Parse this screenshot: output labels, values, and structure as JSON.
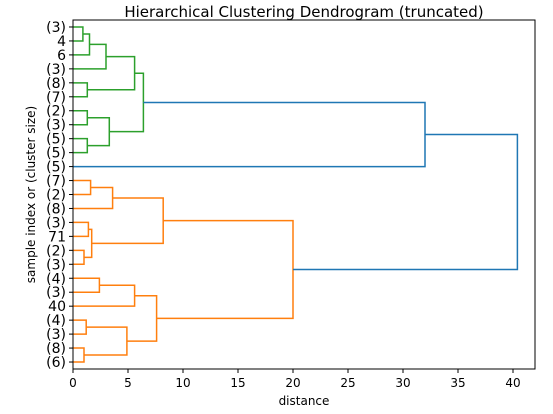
{
  "chart_data": {
    "type": "dendrogram",
    "title": "Hierarchical Clustering Dendrogram (truncated)",
    "xlabel": "distance",
    "ylabel": "sample index or (cluster size)",
    "xlim": [
      0,
      42
    ],
    "xticks": [
      "0",
      "5",
      "10",
      "15",
      "20",
      "25",
      "30",
      "35",
      "40"
    ],
    "xtick_values": [
      0,
      5,
      10,
      15,
      20,
      25,
      30,
      35,
      40
    ],
    "leaves": [
      "(3)",
      "4",
      "6",
      "(3)",
      "(8)",
      "(7)",
      "(2)",
      "(3)",
      "(5)",
      "(5)",
      "(5)",
      "(7)",
      "(2)",
      "(8)",
      "(3)",
      "71",
      "(2)",
      "(3)",
      "(4)",
      "(3)",
      "40",
      "(4)",
      "(3)",
      "(8)",
      "(6)"
    ],
    "colors": {
      "green": "#2ca02c",
      "orange": "#ff7f0e",
      "blue": "#1f77b4"
    },
    "links": [
      {
        "left": 0,
        "right": 1,
        "distance": 0.9,
        "color": "green"
      },
      {
        "left": 25,
        "right": 2,
        "distance": 1.5,
        "color": "green"
      },
      {
        "left": 26,
        "right": 3,
        "distance": 3.0,
        "color": "green"
      },
      {
        "left": 4,
        "right": 5,
        "distance": 1.3,
        "color": "green"
      },
      {
        "left": 27,
        "right": 28,
        "distance": 5.6,
        "color": "green"
      },
      {
        "left": 6,
        "right": 7,
        "distance": 1.3,
        "color": "green"
      },
      {
        "left": 8,
        "right": 9,
        "distance": 1.3,
        "color": "green"
      },
      {
        "left": 30,
        "right": 31,
        "distance": 3.3,
        "color": "green"
      },
      {
        "left": 29,
        "right": 32,
        "distance": 6.4,
        "color": "green"
      },
      {
        "left": 11,
        "right": 12,
        "distance": 1.6,
        "color": "orange"
      },
      {
        "left": 34,
        "right": 13,
        "distance": 3.6,
        "color": "orange"
      },
      {
        "left": 14,
        "right": 15,
        "distance": 1.4,
        "color": "orange"
      },
      {
        "left": 16,
        "right": 17,
        "distance": 1.0,
        "color": "orange"
      },
      {
        "left": 36,
        "right": 37,
        "distance": 1.7,
        "color": "orange"
      },
      {
        "left": 35,
        "right": 38,
        "distance": 8.2,
        "color": "orange"
      },
      {
        "left": 18,
        "right": 19,
        "distance": 2.4,
        "color": "orange"
      },
      {
        "left": 40,
        "right": 20,
        "distance": 5.6,
        "color": "orange"
      },
      {
        "left": 21,
        "right": 22,
        "distance": 1.2,
        "color": "orange"
      },
      {
        "left": 23,
        "right": 24,
        "distance": 1.0,
        "color": "orange"
      },
      {
        "left": 42,
        "right": 43,
        "distance": 4.9,
        "color": "orange"
      },
      {
        "left": 41,
        "right": 44,
        "distance": 7.6,
        "color": "orange"
      },
      {
        "left": 39,
        "right": 45,
        "distance": 20.0,
        "color": "orange"
      },
      {
        "left": 33,
        "right": 10,
        "distance": 32.0,
        "color": "blue"
      },
      {
        "left": 47,
        "right": 46,
        "distance": 40.4,
        "color": "blue"
      }
    ],
    "grid": false,
    "legend": "none"
  }
}
